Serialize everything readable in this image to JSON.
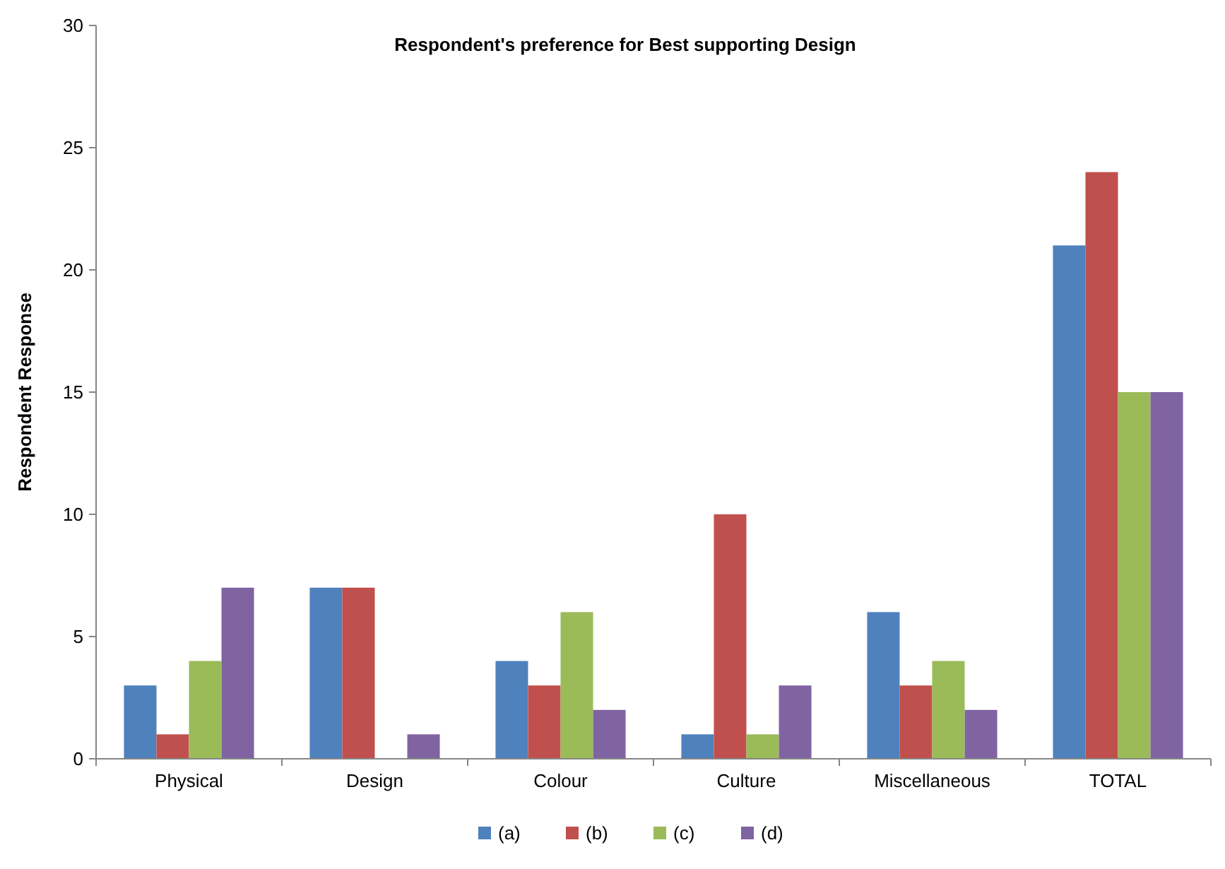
{
  "chart_data": {
    "type": "bar",
    "title": "Respondent's preference for Best supporting Design",
    "ylabel": "Respondent Response",
    "categories": [
      "Physical",
      "Design",
      "Colour",
      "Culture",
      "Miscellaneous",
      "TOTAL"
    ],
    "series": [
      {
        "name": "(a)",
        "color": "#4f81bd",
        "values": [
          3,
          7,
          4,
          1,
          6,
          21
        ]
      },
      {
        "name": "(b)",
        "color": "#c0504d",
        "values": [
          1,
          7,
          3,
          10,
          3,
          24
        ]
      },
      {
        "name": "(c)",
        "color": "#9bbb59",
        "values": [
          4,
          0,
          6,
          1,
          4,
          15
        ]
      },
      {
        "name": "(d)",
        "color": "#8064a2",
        "values": [
          7,
          1,
          2,
          3,
          2,
          15
        ]
      }
    ],
    "ylim": [
      0,
      30
    ],
    "yticks": [
      0,
      5,
      10,
      15,
      20,
      25,
      30
    ],
    "grid": false,
    "legend": "bottom"
  }
}
